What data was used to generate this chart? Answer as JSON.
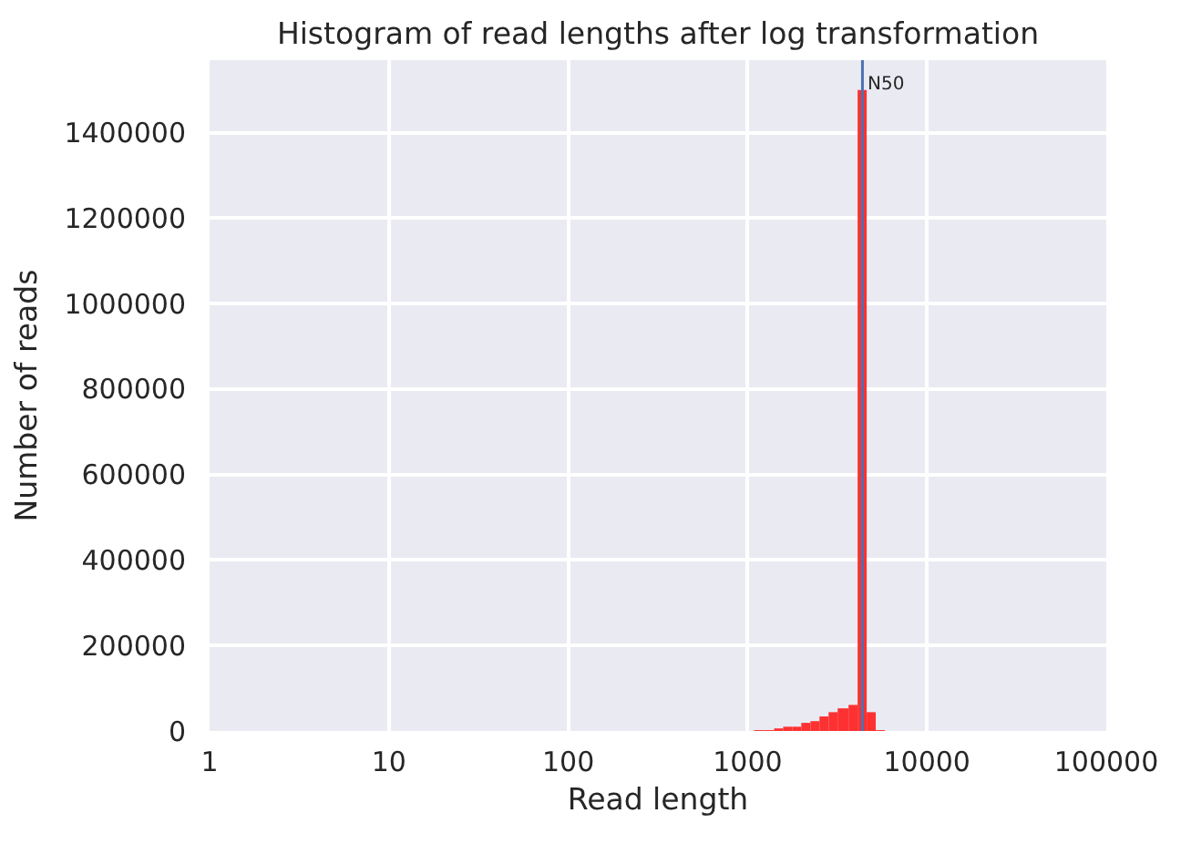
{
  "chart_data": {
    "type": "histogram",
    "title": "Histogram of read lengths after log transformation",
    "xlabel": "Read length",
    "ylabel": "Number of reads",
    "bins": [
      1087,
      1222,
      1405,
      1579,
      1774,
      1993,
      2240,
      2516,
      2828,
      3177,
      3654,
      4106,
      4613,
      5183,
      5824
    ],
    "values": [
      2000,
      2000,
      6000,
      10000,
      10000,
      19000,
      23000,
      34000,
      44000,
      53000,
      61000,
      1500000,
      44000,
      2000
    ],
    "color": "#fd3131",
    "log": "x",
    "xlim": [
      1,
      100000
    ],
    "xticks": [
      1,
      10,
      100,
      1000,
      10000,
      100000
    ],
    "ylim": [
      0,
      1570000
    ],
    "yticks": [
      0,
      200000,
      400000,
      600000,
      800000,
      1000000,
      1200000,
      1400000
    ],
    "grid": true,
    "ref_lines": [
      {
        "axis": "x",
        "value": 4370,
        "label": "N50",
        "color": "#4c72b0"
      }
    ]
  }
}
